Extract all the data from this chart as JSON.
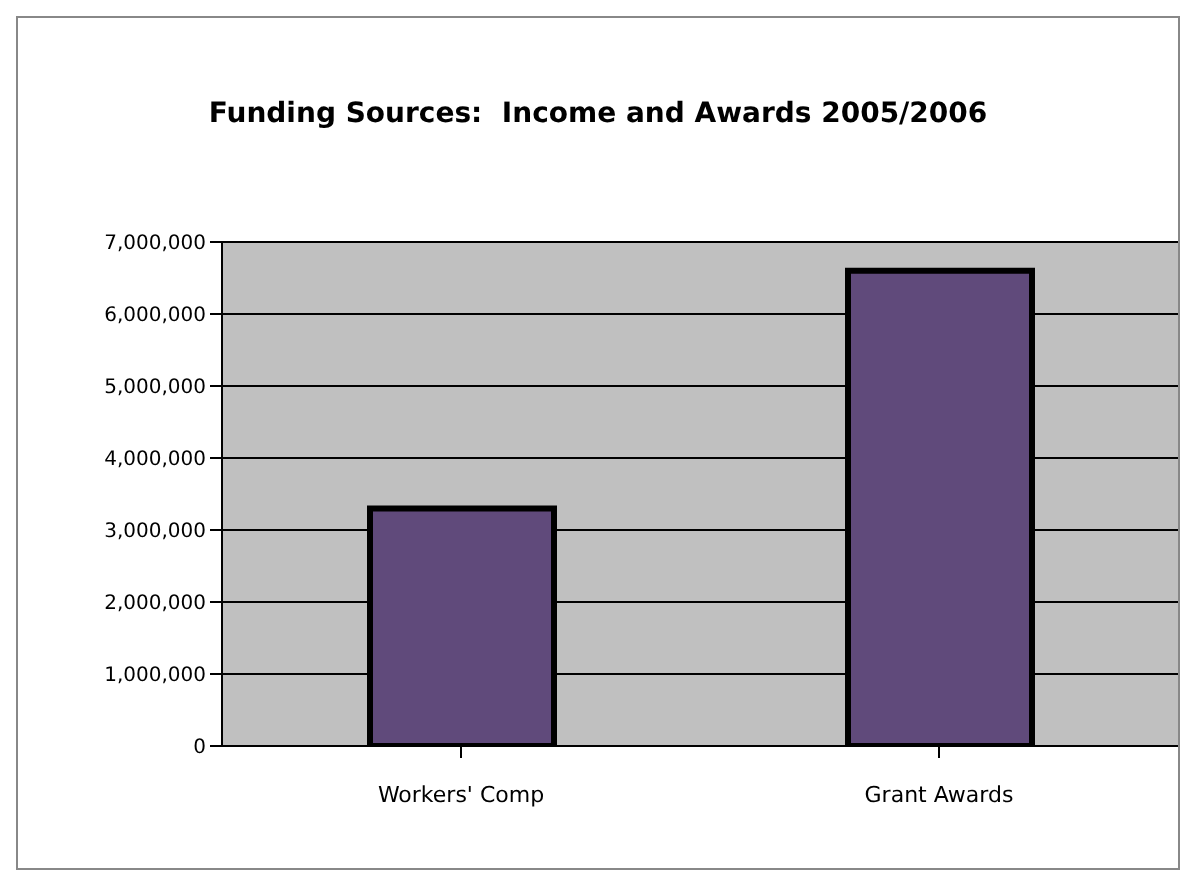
{
  "chart_data": {
    "type": "bar",
    "title": "Funding Sources:  Income and Awards 2005/2006",
    "categories": [
      "Workers' Comp",
      "Grant Awards"
    ],
    "values": [
      3300000,
      6600000
    ],
    "color": "#604a7b",
    "ylim": [
      0,
      7000000
    ],
    "yticks": [
      0,
      {
        "value": 1000000,
        "label": "1,000,000"
      },
      {
        "value": 2000000,
        "label": "2,000,000"
      },
      {
        "value": 3000000,
        "label": "3,000,000"
      },
      {
        "value": 4000000,
        "label": "4,000,000"
      },
      {
        "value": 5000000,
        "label": "5,000,000"
      },
      {
        "value": 6000000,
        "label": "6,000,000"
      },
      {
        "value": 7000000,
        "label": "7,000,000"
      }
    ],
    "grid": "y"
  }
}
